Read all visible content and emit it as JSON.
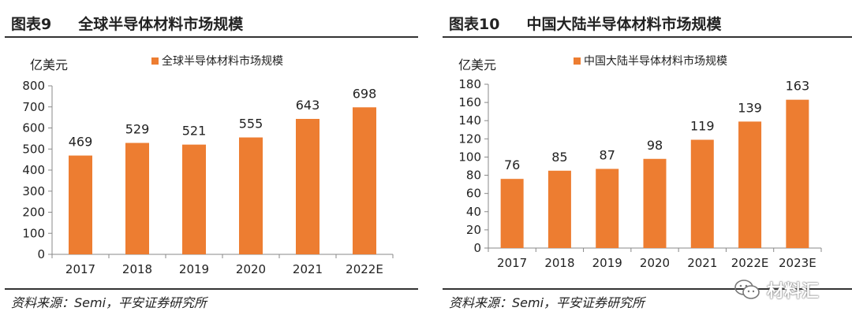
{
  "colors": {
    "bar": "#ED7D31",
    "axis": "#888888",
    "text": "#222222"
  },
  "charts": [
    {
      "fig_label": "图表9",
      "title": "全球半导体材料市场规模",
      "unit": "亿美元",
      "legend": "全球半导体材料市场规模",
      "source": "资料来源：Semi，平安证券研究所",
      "yticks": [
        "0",
        "100",
        "200",
        "300",
        "400",
        "500",
        "600",
        "700",
        "800"
      ]
    },
    {
      "fig_label": "图表10",
      "title": "中国大陆半导体材料市场规模",
      "unit": "亿美元",
      "legend": "中国大陆半导体材料市场规模",
      "source": "资料来源：Semi，平安证券研究所",
      "yticks": [
        "0",
        "20",
        "40",
        "60",
        "80",
        "100",
        "120",
        "140",
        "160",
        "180"
      ]
    }
  ],
  "chart_data": [
    {
      "type": "bar",
      "title": "全球半导体材料市场规模",
      "ylabel": "亿美元",
      "categories": [
        "2017",
        "2018",
        "2019",
        "2020",
        "2021",
        "2022E"
      ],
      "values": [
        469,
        529,
        521,
        555,
        643,
        698
      ],
      "value_labels": [
        "469",
        "529",
        "521",
        "555",
        "643",
        "698"
      ],
      "ylim": [
        0,
        800
      ],
      "legend": "top-center"
    },
    {
      "type": "bar",
      "title": "中国大陆半导体材料市场规模",
      "ylabel": "亿美元",
      "categories": [
        "2017",
        "2018",
        "2019",
        "2020",
        "2021",
        "2022E",
        "2023E"
      ],
      "values": [
        76,
        85,
        87,
        98,
        119,
        139,
        163
      ],
      "value_labels": [
        "76",
        "85",
        "87",
        "98",
        "119",
        "139",
        "163"
      ],
      "ylim": [
        0,
        180
      ],
      "legend": "top-center"
    }
  ],
  "watermark": {
    "text": "材料汇"
  }
}
